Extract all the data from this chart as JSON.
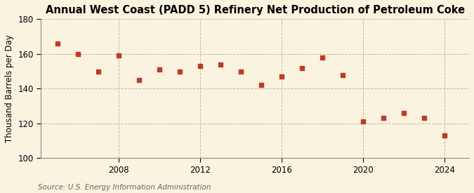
{
  "title": "Annual West Coast (PADD 5) Refinery Net Production of Petroleum Coke",
  "ylabel": "Thousand Barrels per Day",
  "source": "Source: U.S. Energy Information Administration",
  "years": [
    2005,
    2006,
    2007,
    2008,
    2009,
    2010,
    2011,
    2012,
    2013,
    2014,
    2015,
    2016,
    2017,
    2018,
    2019,
    2020,
    2021,
    2022,
    2023,
    2024
  ],
  "values": [
    166,
    160,
    150,
    159,
    145,
    151,
    150,
    153,
    154,
    150,
    142,
    147,
    152,
    158,
    148,
    121,
    123,
    126,
    123,
    113
  ],
  "marker_color": "#c0392b",
  "background_color": "#faf3e0",
  "grid_color": "#c8b89a",
  "ylim": [
    100,
    180
  ],
  "yticks": [
    100,
    120,
    140,
    160,
    180
  ],
  "xticks": [
    2008,
    2012,
    2016,
    2020,
    2024
  ],
  "xlim": [
    2004.2,
    2025.2
  ],
  "title_fontsize": 10.5,
  "label_fontsize": 8.5,
  "tick_fontsize": 8.5,
  "source_fontsize": 7.5,
  "marker_size": 20
}
